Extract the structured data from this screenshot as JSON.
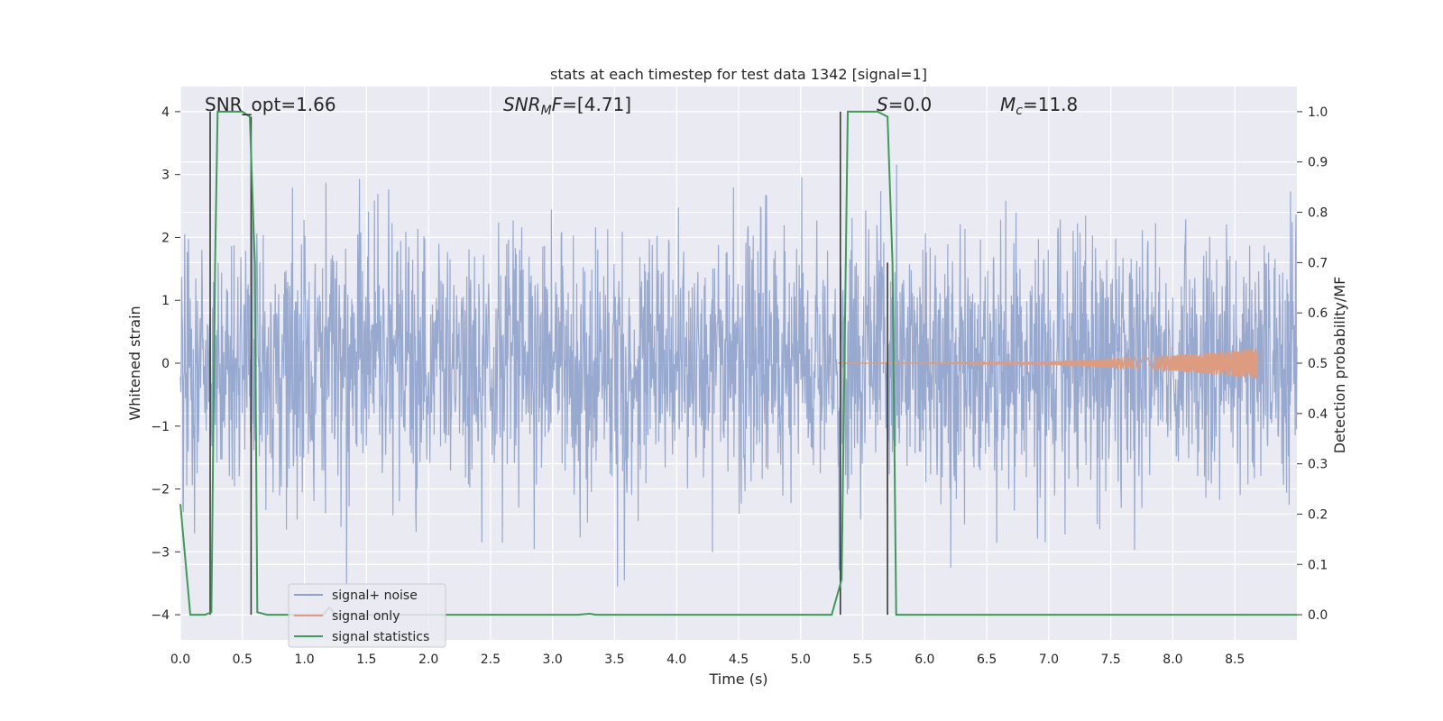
{
  "chart_data": {
    "type": "line",
    "title": "stats at each timestep for test data 1342 [signal=1]",
    "xlabel": "Time (s)",
    "ylabel": "Whitened strain",
    "ylabel_right": "Detection probability/MF",
    "xlim": [
      0.0,
      9.0
    ],
    "ylim": [
      -4.4,
      4.4
    ],
    "ylim_right": [
      -0.05,
      1.05
    ],
    "x_ticks": [
      "0.0",
      "0.5",
      "1.0",
      "1.5",
      "2.0",
      "2.5",
      "3.0",
      "3.5",
      "4.0",
      "4.5",
      "5.0",
      "5.5",
      "6.0",
      "6.5",
      "7.0",
      "7.5",
      "8.0",
      "8.5"
    ],
    "y_ticks": [
      "4",
      "3",
      "2",
      "1",
      "0",
      "−1",
      "−2",
      "−3",
      "−4"
    ],
    "y_right_ticks": [
      "1.0",
      "0.9",
      "0.8",
      "0.7",
      "0.6",
      "0.5",
      "0.4",
      "0.3",
      "0.2",
      "0.1",
      "0.0"
    ],
    "grid": true,
    "legend_position": "lower-left",
    "annotations": {
      "snr_opt": "SNR_opt=1.66",
      "snr_mf_base": "SNR",
      "snr_mf_sub": "M",
      "snr_mf_rest": "F=[4.71]",
      "s_italic": "S",
      "s_rest": "=0.0",
      "mc_base": "M",
      "mc_sub": "c",
      "mc_rest": "=11.8"
    },
    "series": [
      {
        "name": "signal+ noise",
        "color": "#8fa2cc",
        "axis": "left",
        "description_values": {
          "x_range": [
            0.0,
            9.0
          ],
          "amplitude_range": [
            -3.7,
            4.0
          ]
        }
      },
      {
        "name": "signal only",
        "color": "#dd9c7f",
        "axis": "left",
        "chirp": {
          "start": 5.3,
          "end": 8.68,
          "peak_amplitude": 0.25
        }
      },
      {
        "name": "signal statistics",
        "color": "#3d9a59",
        "axis": "right",
        "points": [
          [
            0.0,
            0.22
          ],
          [
            0.08,
            0.0
          ],
          [
            0.2,
            0.0
          ],
          [
            0.25,
            0.005
          ],
          [
            0.28,
            0.7
          ],
          [
            0.3,
            1.0
          ],
          [
            0.5,
            1.0
          ],
          [
            0.56,
            0.99
          ],
          [
            0.6,
            0.7
          ],
          [
            0.62,
            0.005
          ],
          [
            0.7,
            0.0
          ],
          [
            1.15,
            0.0
          ],
          [
            1.2,
            0.015
          ],
          [
            1.25,
            0.0
          ],
          [
            3.2,
            0.0
          ],
          [
            3.3,
            0.002
          ],
          [
            3.35,
            0.0
          ],
          [
            5.25,
            0.0
          ],
          [
            5.33,
            0.07
          ],
          [
            5.38,
            1.0
          ],
          [
            5.62,
            1.0
          ],
          [
            5.7,
            0.99
          ],
          [
            5.74,
            0.7
          ],
          [
            5.77,
            0.0
          ],
          [
            9.0,
            0.0
          ]
        ],
        "mf_spikes": [
          {
            "x": 0.24,
            "y": 1.0
          },
          {
            "x": 0.57,
            "y": 0.99
          },
          {
            "x": 5.32,
            "y": 1.0
          },
          {
            "x": 5.7,
            "y": 0.7
          }
        ]
      }
    ]
  },
  "legend": {
    "items": [
      {
        "label": "signal+ noise"
      },
      {
        "label": "signal only"
      },
      {
        "label": "signal statistics"
      }
    ]
  }
}
